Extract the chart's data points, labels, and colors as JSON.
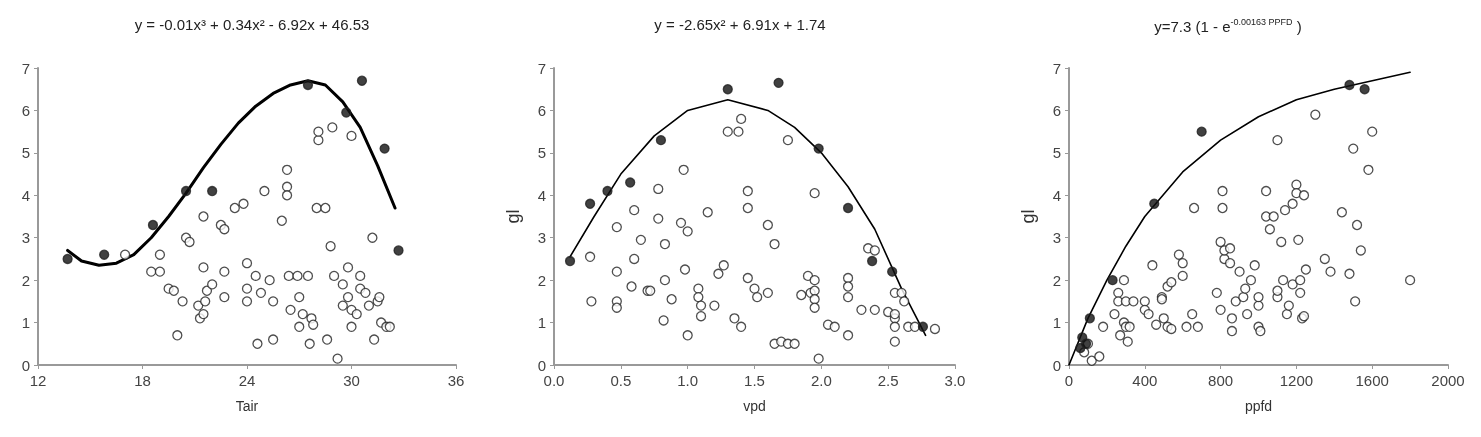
{
  "chart_data": [
    {
      "type": "scatter",
      "title": "y = -0.01x³ + 0.34x² - 6.92x + 46.53",
      "xlabel": "Tair",
      "xlim": [
        12,
        36
      ],
      "xticks": [
        12,
        18,
        24,
        30,
        36
      ],
      "ylim": [
        0,
        7
      ],
      "yticks": [
        0,
        1,
        2,
        3,
        4,
        5,
        6,
        7
      ],
      "series": [
        {
          "color": "#ffffff",
          "x": [
            17,
            18.5,
            19,
            19,
            19.5,
            19.8,
            20.3,
            20,
            20.5,
            20.7,
            21.2,
            21.3,
            21.5,
            21.6,
            21.7,
            22,
            21.5,
            21.5,
            22.5,
            22.7,
            22.7,
            22.7,
            23.3,
            23.8,
            24,
            24,
            24,
            24.5,
            24.6,
            24.8,
            25,
            25.3,
            25.5,
            25.5,
            26,
            26.3,
            26.3,
            26.3,
            26.4,
            26.5,
            26.9,
            27,
            27,
            27.2,
            27.5,
            27.6,
            27.7,
            27.8,
            28,
            28.1,
            28.1,
            28.5,
            28.6,
            28.8,
            28.9,
            29,
            29.2,
            29.5,
            29.5,
            29.8,
            29.8,
            30,
            30,
            30,
            30.3,
            30.5,
            30.5,
            30.8,
            31,
            31.2,
            31.3,
            31.5,
            31.6,
            31.7,
            32,
            32.2
          ],
          "values": [
            2.6,
            2.2,
            2.6,
            2.2,
            1.8,
            1.75,
            1.5,
            0.7,
            3,
            2.9,
            1.4,
            1.1,
            1.2,
            1.5,
            1.75,
            1.9,
            2.3,
            3.5,
            3.3,
            3.2,
            2.2,
            1.6,
            3.7,
            3.8,
            2.4,
            1.8,
            1.5,
            2.1,
            0.5,
            1.7,
            4.1,
            2,
            1.5,
            0.6,
            3.4,
            4.2,
            4,
            4.6,
            2.1,
            1.3,
            2.1,
            1.6,
            0.9,
            1.2,
            2.1,
            0.5,
            1.1,
            0.95,
            3.7,
            5.3,
            5.5,
            3.7,
            0.6,
            2.8,
            5.6,
            2.1,
            0.15,
            1.4,
            1.9,
            1.6,
            2.3,
            5.4,
            1.3,
            0.9,
            1.2,
            1.8,
            2.1,
            1.7,
            1.4,
            3,
            0.6,
            1.5,
            1.6,
            1,
            0.9,
            0.9
          ]
        },
        {
          "color": "#111111",
          "x": [
            13.7,
            15.8,
            18.6,
            20.5,
            22,
            27.5,
            29.7,
            30.6,
            31.9,
            32.7
          ],
          "values": [
            2.5,
            2.6,
            3.3,
            4.1,
            4.1,
            6.6,
            5.95,
            6.7,
            5.1,
            2.7
          ]
        },
        {
          "type": "line",
          "color": "#000000",
          "x": [
            13.7,
            14.5,
            15.5,
            16.5,
            17.5,
            18.5,
            19.5,
            20.5,
            21.5,
            22.5,
            23.5,
            24.5,
            25.5,
            26.5,
            27.5,
            28.5,
            29.5,
            30.5,
            31.5,
            32.5
          ],
          "values": [
            2.7,
            2.45,
            2.35,
            2.4,
            2.6,
            3,
            3.5,
            4.05,
            4.65,
            5.2,
            5.7,
            6.1,
            6.4,
            6.6,
            6.7,
            6.6,
            6.2,
            5.6,
            4.7,
            3.7
          ]
        }
      ]
    },
    {
      "type": "scatter",
      "title": "y = -2.65x² + 6.91x + 1.74",
      "xlabel": "vpd",
      "ylabel": "gl",
      "xlim": [
        0,
        3
      ],
      "xticks": [
        {
          "value": 0,
          "label": "0.0"
        },
        0.5,
        {
          "value": 1,
          "label": "1.0"
        },
        1.5,
        {
          "value": 2,
          "label": "2.0"
        },
        2.5,
        {
          "value": 3,
          "label": "3.0"
        }
      ],
      "ylim": [
        0,
        7
      ],
      "yticks": [
        0,
        1,
        2,
        3,
        4,
        5,
        6,
        7
      ],
      "series": [
        {
          "color": "#ffffff",
          "x": [
            0.27,
            0.28,
            0.47,
            0.47,
            0.47,
            0.47,
            0.6,
            0.65,
            0.6,
            0.58,
            0.7,
            0.72,
            0.78,
            0.78,
            0.83,
            0.83,
            0.82,
            0.88,
            0.97,
            0.95,
            1,
            0.98,
            1,
            1.08,
            1.08,
            1.1,
            1.1,
            1.15,
            1.2,
            1.23,
            1.27,
            1.35,
            1.4,
            1.3,
            1.38,
            1.4,
            1.45,
            1.45,
            1.45,
            1.5,
            1.52,
            1.6,
            1.65,
            1.6,
            1.65,
            1.7,
            1.75,
            1.8,
            1.75,
            1.85,
            1.9,
            1.92,
            1.95,
            1.95,
            1.95,
            1.95,
            1.95,
            1.98,
            2.05,
            2.1,
            2.2,
            2.2,
            2.2,
            2.2,
            2.35,
            2.4,
            2.3,
            2.4,
            2.5,
            2.55,
            2.55,
            2.55,
            2.6,
            2.62,
            2.55,
            2.55,
            2.65,
            2.7,
            2.85
          ],
          "values": [
            2.55,
            1.5,
            3.25,
            2.2,
            1.5,
            1.35,
            3.65,
            2.95,
            2.5,
            1.85,
            1.75,
            1.75,
            4.15,
            3.45,
            2.85,
            2,
            1.05,
            1.55,
            4.6,
            3.35,
            3.15,
            2.25,
            0.7,
            1.8,
            1.6,
            1.4,
            1.15,
            3.6,
            1.4,
            2.15,
            2.35,
            1.1,
            0.9,
            5.5,
            5.5,
            5.8,
            4.1,
            3.7,
            2.05,
            1.8,
            1.6,
            3.3,
            2.85,
            1.7,
            0.5,
            0.55,
            0.5,
            0.5,
            5.3,
            1.65,
            2.1,
            1.7,
            1.75,
            1.55,
            1.35,
            2,
            4.05,
            0.15,
            0.95,
            0.9,
            2.05,
            1.85,
            1.6,
            0.7,
            2.75,
            2.7,
            1.3,
            1.3,
            1.25,
            1.1,
            1.2,
            1.7,
            1.7,
            1.5,
            0.9,
            0.55,
            0.9,
            0.9,
            0.85
          ]
        },
        {
          "color": "#111111",
          "x": [
            0.12,
            0.27,
            0.4,
            0.57,
            0.8,
            1.3,
            1.68,
            1.98,
            2.2,
            2.38,
            2.53,
            2.76
          ],
          "values": [
            2.45,
            3.8,
            4.1,
            4.3,
            5.3,
            6.5,
            6.65,
            5.1,
            3.7,
            2.45,
            2.2,
            0.9
          ]
        },
        {
          "type": "line",
          "color": "#000000",
          "x": [
            0.12,
            0.3,
            0.5,
            0.75,
            1,
            1.3,
            1.6,
            1.8,
            2,
            2.2,
            2.4,
            2.6,
            2.78
          ],
          "values": [
            2.55,
            3.5,
            4.5,
            5.4,
            6,
            6.25,
            6,
            5.6,
            5,
            4.2,
            3.2,
            1.8,
            0.7
          ]
        }
      ]
    },
    {
      "type": "scatter",
      "title": "y=7.3 (1 - e$^{-0.00163 PPFD}$ )",
      "xlabel": "ppfd",
      "ylabel": "gl",
      "xlim": [
        0,
        2000
      ],
      "xticks": [
        0,
        400,
        800,
        1200,
        1600,
        2000
      ],
      "ylim": [
        0,
        7
      ],
      "yticks": [
        0,
        1,
        2,
        3,
        4,
        5,
        6,
        7
      ],
      "series": [
        {
          "color": "#ffffff",
          "x": [
            120,
            100,
            180,
            240,
            260,
            260,
            270,
            290,
            290,
            300,
            300,
            310,
            320,
            340,
            400,
            400,
            420,
            440,
            460,
            490,
            490,
            500,
            520,
            520,
            540,
            540,
            580,
            600,
            600,
            620,
            660,
            650,
            680,
            780,
            800,
            800,
            810,
            810,
            820,
            820,
            850,
            850,
            860,
            860,
            880,
            900,
            920,
            930,
            940,
            960,
            980,
            1000,
            1000,
            1000,
            1010,
            1040,
            1040,
            1060,
            1080,
            1100,
            1100,
            1100,
            1120,
            1130,
            1140,
            1150,
            1160,
            1180,
            1180,
            1200,
            1200,
            1210,
            1220,
            1220,
            1230,
            1240,
            1250,
            1240,
            1300,
            1350,
            1380,
            1440,
            1480,
            1500,
            1510,
            1520,
            1540,
            1580,
            1600,
            1800,
            80,
            160
          ],
          "values": [
            0.1,
            0.5,
            0.9,
            1.2,
            1.7,
            1.5,
            0.7,
            2,
            1,
            1.5,
            0.9,
            0.55,
            0.9,
            1.5,
            1.5,
            1.3,
            1.2,
            2.35,
            0.95,
            1.6,
            1.55,
            1.1,
            0.9,
            1.85,
            1.95,
            0.85,
            2.6,
            2.4,
            2.1,
            0.9,
            3.7,
            1.2,
            0.9,
            1.7,
            2.9,
            1.3,
            4.1,
            3.7,
            2.5,
            2.7,
            2.4,
            2.75,
            1.1,
            0.8,
            1.5,
            2.2,
            1.6,
            1.8,
            1.2,
            2,
            2.35,
            1.4,
            1.6,
            0.9,
            0.8,
            3.5,
            4.1,
            3.2,
            3.5,
            5.3,
            1.6,
            1.75,
            2.9,
            2,
            3.65,
            1.2,
            1.4,
            3.8,
            1.9,
            4.25,
            4.05,
            2.95,
            2,
            1.7,
            1.1,
            1.15,
            2.25,
            4,
            5.9,
            2.5,
            2.2,
            3.6,
            2.15,
            5.1,
            1.5,
            3.3,
            2.7,
            4.6,
            5.5,
            2,
            0.3,
            0.2
          ]
        },
        {
          "color": "#111111",
          "x": [
            60,
            70,
            90,
            110,
            230,
            450,
            700,
            1480,
            1560
          ],
          "values": [
            0.4,
            0.65,
            0.5,
            1.1,
            2,
            3.8,
            5.5,
            6.6,
            6.5
          ]
        },
        {
          "type": "line",
          "color": "#000000",
          "x": [
            0,
            100,
            200,
            300,
            400,
            600,
            800,
            1000,
            1200,
            1400,
            1600,
            1800
          ],
          "values": [
            0,
            1.1,
            2,
            2.8,
            3.5,
            4.55,
            5.3,
            5.85,
            6.25,
            6.5,
            6.7,
            6.9
          ]
        }
      ]
    }
  ]
}
